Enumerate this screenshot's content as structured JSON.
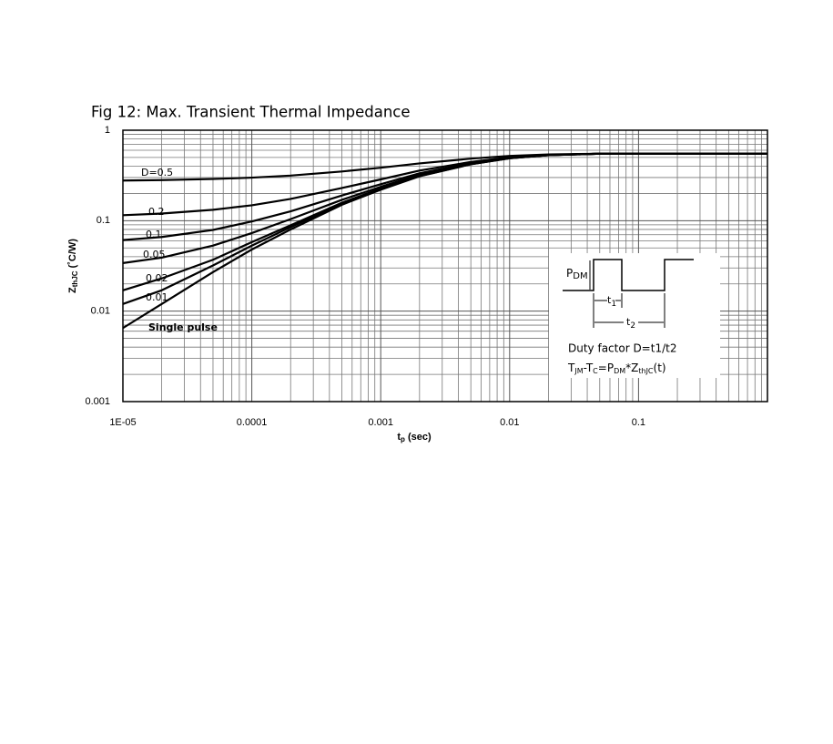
{
  "chart_data": {
    "type": "line",
    "title": "Fig 12: Max. Transient Thermal Impedance",
    "x_label": [
      "t",
      "p",
      " (sec)"
    ],
    "y_label": [
      "Z",
      "thJC",
      " (˚C/W)"
    ],
    "log_x": true,
    "log_y": true,
    "grid": true,
    "xlim": [
      1e-05,
      1
    ],
    "ylim": [
      0.001,
      1
    ],
    "xticks": [
      {
        "value": 1e-05,
        "label": "1E-05"
      },
      0.0001,
      0.001,
      0.01,
      0.1
    ],
    "yticks": [
      0.001,
      0.01,
      0.1,
      1
    ],
    "xminorticks": [
      2e-05,
      3e-05,
      4e-05,
      5e-05,
      6e-05,
      7e-05,
      8e-05,
      9e-05,
      0.0002,
      0.0003,
      0.0004,
      0.0005,
      0.0006,
      0.0007,
      0.0008,
      0.0009,
      0.002,
      0.003,
      0.004,
      0.005,
      0.006,
      0.007,
      0.008,
      0.009,
      0.02,
      0.03,
      0.04,
      0.05,
      0.06,
      0.07,
      0.08,
      0.09,
      0.2,
      0.3,
      0.4,
      0.5,
      0.6,
      0.7,
      0.8,
      0.9
    ],
    "yminorticks": [
      0.002,
      0.003,
      0.004,
      0.005,
      0.006,
      0.007,
      0.008,
      0.009,
      0.02,
      0.03,
      0.04,
      0.05,
      0.06,
      0.07,
      0.08,
      0.09,
      0.2,
      0.3,
      0.4,
      0.5,
      0.6,
      0.7,
      0.8,
      0.9
    ],
    "x": [
      1e-05,
      2e-05,
      5e-05,
      0.0001,
      0.0002,
      0.0005,
      0.001,
      0.002,
      0.005,
      0.01,
      0.02,
      0.05,
      0.1,
      1
    ],
    "series": [
      {
        "name": "D=0.5",
        "color": "#000000",
        "values": [
          0.278,
          0.281,
          0.289,
          0.299,
          0.315,
          0.35,
          0.385,
          0.43,
          0.485,
          0.52,
          0.54,
          0.55,
          0.55,
          0.55
        ]
      },
      {
        "name": "0.2",
        "color": "#000000",
        "values": [
          0.115,
          0.12,
          0.132,
          0.148,
          0.174,
          0.23,
          0.286,
          0.358,
          0.446,
          0.502,
          0.534,
          0.55,
          0.55,
          0.55
        ]
      },
      {
        "name": "0.1",
        "color": "#000000",
        "values": [
          0.061,
          0.066,
          0.079,
          0.098,
          0.127,
          0.19,
          0.253,
          0.334,
          0.433,
          0.496,
          0.532,
          0.55,
          0.55,
          0.55
        ]
      },
      {
        "name": "0.05",
        "color": "#000000",
        "values": [
          0.034,
          0.039,
          0.053,
          0.073,
          0.104,
          0.17,
          0.237,
          0.322,
          0.427,
          0.493,
          0.531,
          0.55,
          0.55,
          0.55
        ]
      },
      {
        "name": "0.02",
        "color": "#000000",
        "values": [
          0.017,
          0.023,
          0.037,
          0.058,
          0.089,
          0.158,
          0.227,
          0.315,
          0.423,
          0.491,
          0.53,
          0.55,
          0.55,
          0.55
        ]
      },
      {
        "name": "0.01",
        "color": "#000000",
        "values": [
          0.012,
          0.017,
          0.032,
          0.053,
          0.085,
          0.154,
          0.223,
          0.312,
          0.421,
          0.49,
          0.53,
          0.55,
          0.55,
          0.55
        ]
      },
      {
        "name": "Single pulse",
        "color": "#000000",
        "values": [
          0.0065,
          0.012,
          0.027,
          0.048,
          0.08,
          0.15,
          0.22,
          0.31,
          0.42,
          0.49,
          0.53,
          0.55,
          0.55,
          0.55
        ]
      }
    ],
    "inset": {
      "pulse_label": [
        "P",
        "DM"
      ],
      "t1": [
        "t",
        "1"
      ],
      "t2": [
        "t",
        "2"
      ],
      "duty": "Duty factor D=t1/t2",
      "formula": [
        "T",
        "JM",
        "-T",
        "C",
        "=P",
        "DM",
        "*Z",
        "thJC",
        "(t)"
      ]
    }
  }
}
